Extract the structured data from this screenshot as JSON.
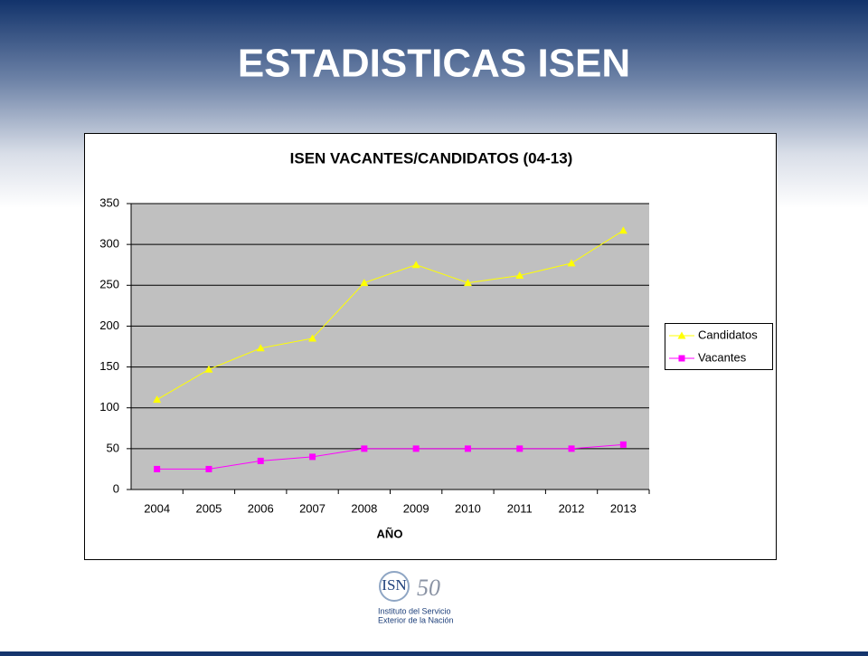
{
  "header": {
    "title": "ESTADISTICAS ISEN"
  },
  "chart_data": {
    "type": "line",
    "title": "ISEN VACANTES/CANDIDATOS (04-13)",
    "x_label": "AÑO",
    "categories": [
      "2004",
      "2005",
      "2006",
      "2007",
      "2008",
      "2009",
      "2010",
      "2011",
      "2012",
      "2013"
    ],
    "series": [
      {
        "name": "Candidatos",
        "color": "#ffff00",
        "marker": "triangle",
        "values": [
          110,
          147,
          173,
          185,
          253,
          275,
          253,
          262,
          277,
          317
        ]
      },
      {
        "name": "Vacantes",
        "color": "#ff00ff",
        "marker": "square",
        "values": [
          25,
          25,
          35,
          40,
          50,
          50,
          50,
          50,
          50,
          55
        ]
      }
    ],
    "ylim": [
      0,
      350
    ],
    "yticks": [
      0,
      50,
      100,
      150,
      200,
      250,
      300,
      350
    ],
    "grid": true,
    "legend": "right"
  },
  "footer": {
    "logo_mark": "ISN",
    "logo_anniversary": "50",
    "logo_text": [
      "Instituto del Servicio",
      "Exterior de la Nación"
    ]
  }
}
